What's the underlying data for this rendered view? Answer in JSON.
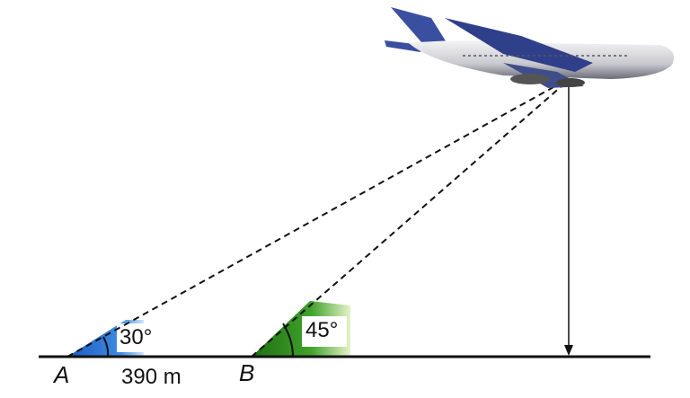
{
  "points": {
    "a": "A",
    "b": "B"
  },
  "angles": {
    "a": "30°",
    "b": "45°"
  },
  "distance_ab": "390 m",
  "colors": {
    "angle_a": "#2a6fd0",
    "angle_b": "#2e8f1e",
    "plane_tail": "#3a4fa0"
  }
}
